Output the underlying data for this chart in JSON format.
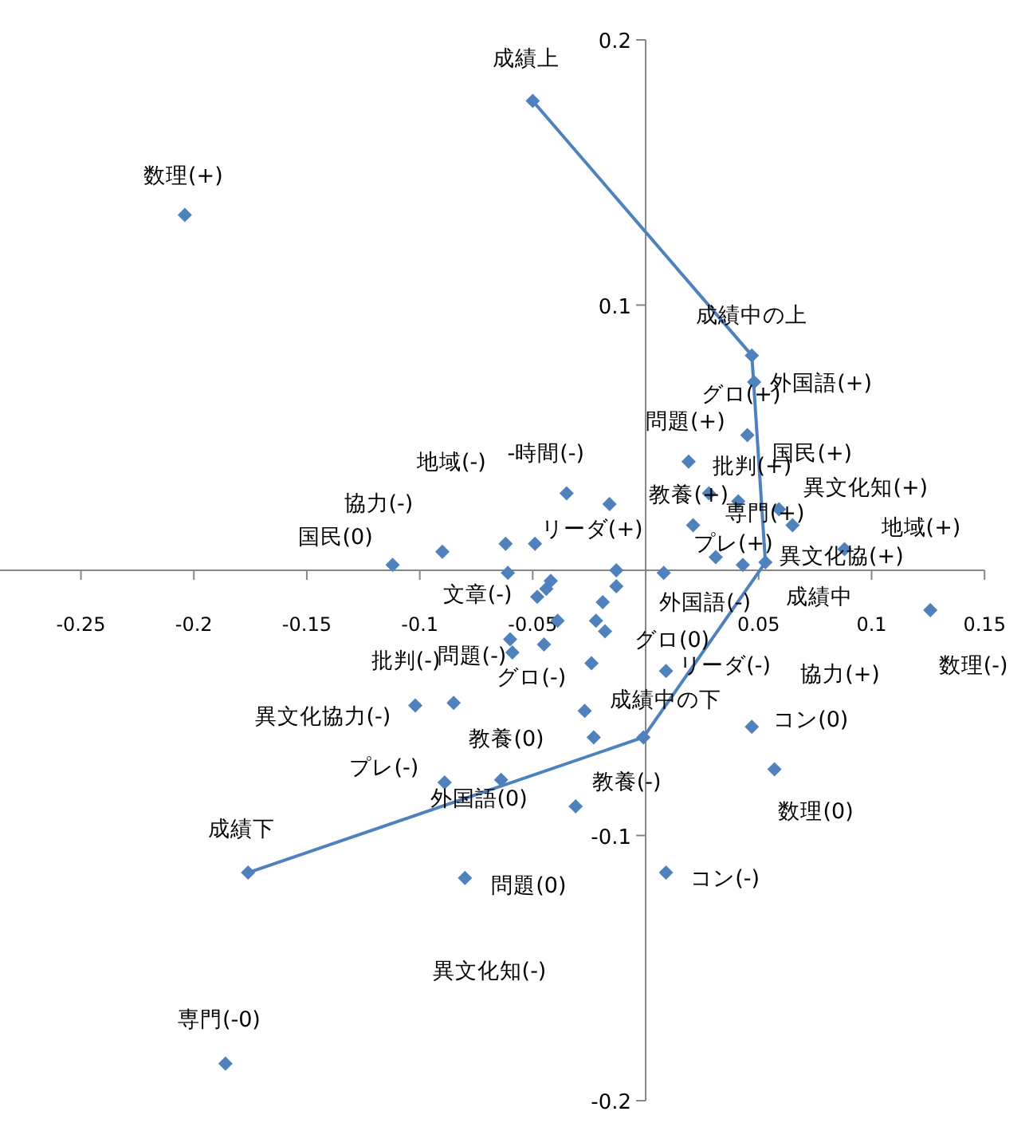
{
  "chart_data": {
    "type": "scatter",
    "xlim": [
      -0.3,
      0.15
    ],
    "ylim": [
      -0.2,
      0.2
    ],
    "xticks": [
      {
        "value": -0.3,
        "label": null
      },
      -0.25,
      -0.2,
      -0.15,
      -0.1,
      -0.05,
      {
        "value": 0,
        "label": null
      },
      0.05,
      0.1,
      0.15
    ],
    "yticks": [
      -0.2,
      -0.1,
      {
        "value": 0,
        "label": null
      },
      0.1,
      0.2
    ],
    "marker": "diamond",
    "series": [
      {
        "type": "line",
        "color": "#4f81bd",
        "x": [
          -0.05,
          0.047,
          0.053,
          -0.001,
          -0.176
        ],
        "values": [
          0.177,
          0.081,
          0.003,
          -0.063,
          -0.114
        ],
        "value_labels": [
          "成績上",
          "成績中の上",
          "成績中",
          "成績中の下",
          "成績下"
        ]
      },
      {
        "color": "#4f81bd",
        "x": [
          -0.204,
          0.048,
          0.045,
          0.019,
          -0.035,
          -0.016,
          0.028,
          0.041,
          0.059,
          0.065,
          0.021,
          -0.062,
          -0.049,
          -0.09,
          -0.112,
          0.088,
          0.031,
          0.043,
          -0.061,
          -0.013,
          0.008,
          -0.013,
          -0.042,
          -0.044,
          -0.048,
          -0.019,
          -0.022,
          -0.018,
          -0.039,
          -0.06,
          -0.045,
          0.126,
          -0.059,
          -0.024,
          0.009,
          -0.102,
          -0.085,
          -0.027,
          -0.023,
          0.047,
          0.057,
          -0.089,
          -0.064,
          -0.031,
          -0.08,
          0.009,
          -0.186
        ],
        "values": [
          0.134,
          0.071,
          0.051,
          0.041,
          0.029,
          0.025,
          0.029,
          0.026,
          0.023,
          0.017,
          0.017,
          0.01,
          0.01,
          0.007,
          0.002,
          0.008,
          0.005,
          0.002,
          -0.001,
          0.0,
          -0.001,
          -0.006,
          -0.004,
          -0.007,
          -0.01,
          -0.012,
          -0.019,
          -0.023,
          -0.019,
          -0.026,
          -0.028,
          -0.015,
          -0.031,
          -0.035,
          -0.038,
          -0.051,
          -0.05,
          -0.053,
          -0.063,
          -0.059,
          -0.075,
          -0.08,
          -0.079,
          -0.089,
          -0.116,
          -0.114,
          -0.186
        ],
        "value_labels": [
          "数理(+)",
          "外国語(+)",
          "グロ(+)",
          "問題(+)",
          "-時間(-)",
          "リーダ(+)",
          "批判(+)",
          "教養(+)",
          "国民(+)",
          "異文化知(+)",
          "専門(+)",
          "地域(-)",
          null,
          "協力(-)",
          "国民(0)",
          "地域(+)",
          "プレ(+)",
          "異文化協(+)",
          "文章(-)",
          null,
          "外国語(-)",
          null,
          null,
          null,
          null,
          null,
          null,
          "グロ(0)",
          null,
          "問題(-)",
          null,
          "数理(-)",
          "グロ(-)",
          null,
          "リーダ(-)",
          "異文化協力(-)",
          "批判(-)",
          "教養(0)",
          null,
          "コン(0)",
          "数理(0)",
          "プレ(-)",
          "外国語(0)",
          "教養(-)",
          "問題(0)",
          "コン(-)",
          "専門(-0)"
        ]
      }
    ],
    "annotations": [
      "協力(+)",
      "異文化知(-)"
    ]
  }
}
